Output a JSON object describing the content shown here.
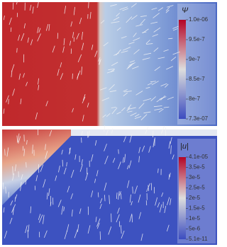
{
  "panels": [
    {
      "colorbar": {
        "title": "Ψ",
        "labels": [
          "1.0e-06",
          "9.5e-7",
          "9e-7",
          "8.5e-7",
          "8e-7",
          "7.3e-07"
        ]
      }
    },
    {
      "colorbar": {
        "title": "|u|",
        "labels": [
          "4.1e-05",
          "3.5e-5",
          "3e-5",
          "2.5e-5",
          "2e-5",
          "1.5e-5",
          "1e-5",
          "5e-6",
          "5.1e-11"
        ]
      }
    }
  ]
}
